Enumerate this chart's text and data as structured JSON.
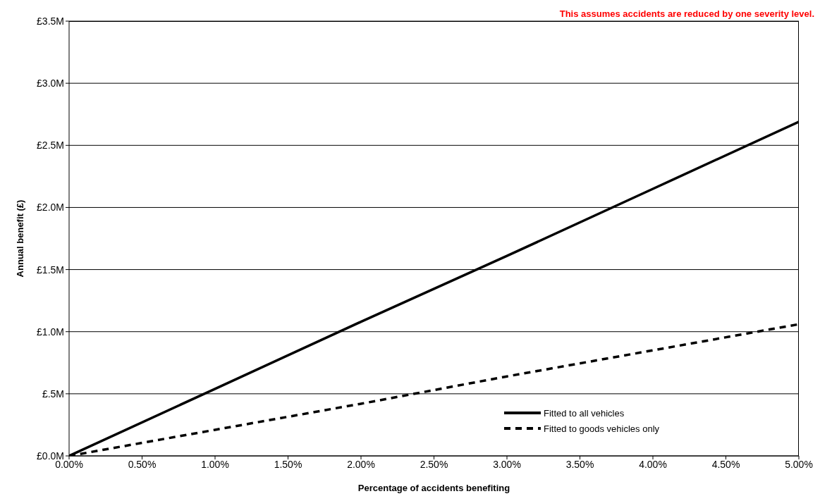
{
  "chart_data": {
    "type": "line",
    "xlabel": "Percentage of accidents benefiting",
    "ylabel": "Annual benefit (£)",
    "annotations": [
      "This assumes accidents are reduced by one severity level."
    ],
    "x": [
      0,
      1,
      2,
      3,
      4,
      5
    ],
    "series": [
      {
        "name": "Fitted to all vehicles",
        "color": "#000000",
        "values": [
          0,
          0.54,
          1.08,
          1.61,
          2.15,
          2.69
        ]
      },
      {
        "name": "Fitted to goods vehicles only",
        "color": "#000000",
        "line_style": "dashed",
        "values": [
          0,
          0.21,
          0.42,
          0.64,
          0.85,
          1.06
        ]
      }
    ],
    "xlim": [
      0,
      5
    ],
    "xticks": [
      {
        "value": 0,
        "label": "0.00%"
      },
      {
        "value": 0.5,
        "label": "0.50%"
      },
      {
        "value": 1,
        "label": "1.00%"
      },
      {
        "value": 1.5,
        "label": "1.50%"
      },
      {
        "value": 2,
        "label": "2.00%"
      },
      {
        "value": 2.5,
        "label": "2.50%"
      },
      {
        "value": 3,
        "label": "3.00%"
      },
      {
        "value": 3.5,
        "label": "3.50%"
      },
      {
        "value": 4,
        "label": "4.00%"
      },
      {
        "value": 4.5,
        "label": "4.50%"
      },
      {
        "value": 5,
        "label": "5.00%"
      }
    ],
    "ylim": [
      0,
      3.5
    ],
    "yticks": [
      {
        "value": 0,
        "label": "£0.0M"
      },
      {
        "value": 0.5,
        "label": "£.5M"
      },
      {
        "value": 1,
        "label": "£1.0M"
      },
      {
        "value": 1.5,
        "label": "£1.5M"
      },
      {
        "value": 2,
        "label": "£2.0M"
      },
      {
        "value": 2.5,
        "label": "£2.5M"
      },
      {
        "value": 3,
        "label": "£3.0M"
      },
      {
        "value": 3.5,
        "label": "£3.5M"
      }
    ],
    "grid": "y",
    "legend": "bottom right",
    "marker": "none",
    "line_style": "solid"
  }
}
